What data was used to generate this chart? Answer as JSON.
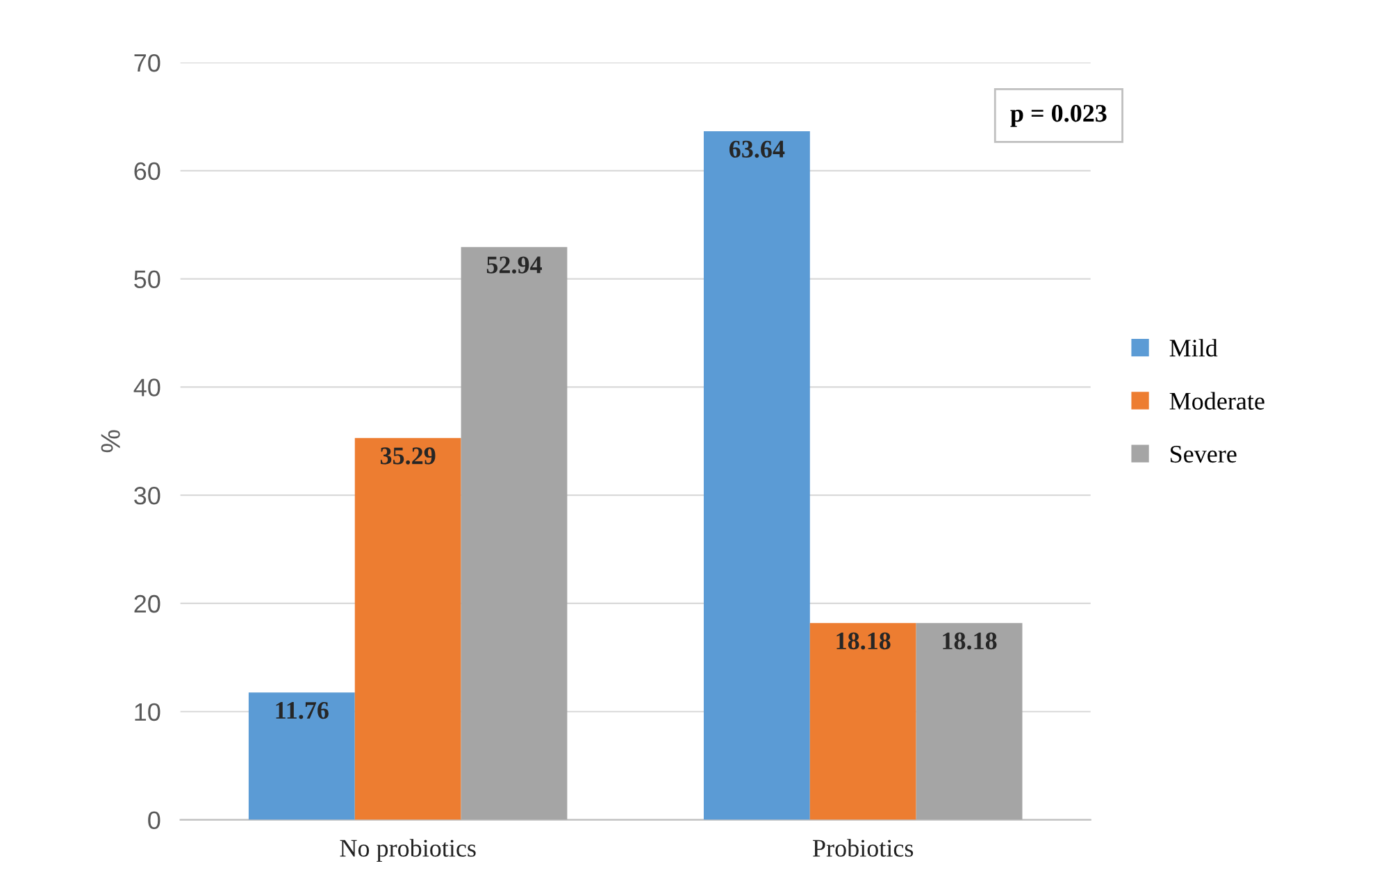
{
  "chart_data": {
    "type": "bar",
    "ylabel": "%",
    "categories": [
      "No probiotics",
      "Probiotics"
    ],
    "series": [
      {
        "name": "Mild",
        "color": "#5b9bd5",
        "values": [
          11.76,
          63.64
        ]
      },
      {
        "name": "Moderate",
        "color": "#ed7d31",
        "values": [
          35.29,
          18.18
        ]
      },
      {
        "name": "Severe",
        "color": "#a5a5a5",
        "values": [
          52.94,
          18.18
        ]
      }
    ],
    "ylim": [
      0,
      70
    ],
    "yticks": [
      0,
      10,
      20,
      30,
      40,
      50,
      60,
      70
    ],
    "grid": "y",
    "legend": "right",
    "data_labels": true,
    "annotations": [
      "p = 0.023"
    ]
  }
}
